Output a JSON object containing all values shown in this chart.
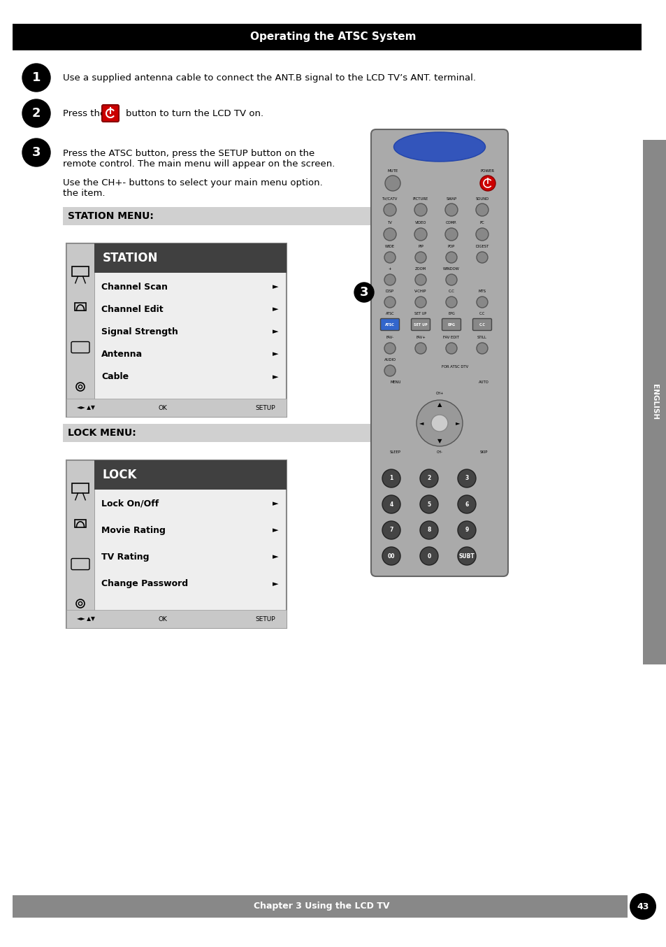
{
  "title": "Operating the ATSC System",
  "footer_text": "Chapter 3 Using the LCD TV",
  "page_num": "43",
  "step1_text": "Use a supplied antenna cable to connect the ANT.B signal to the LCD TV’s ANT. terminal.",
  "step2_text1": "Press the",
  "step2_text2": "button to turn the LCD TV on.",
  "step3_text1": "Press the ATSC button, press the SETUP button on the\nremote control. The main menu will appear on the screen.",
  "step3_text2": "Use the CH+- buttons to select your main menu option.\nthe item.",
  "station_menu_label": "STATION MENU:",
  "lock_menu_label": "LOCK MENU:",
  "station_title": "STATION",
  "station_items": [
    "Channel Scan",
    "Channel Edit",
    "Signal Strength",
    "Antenna",
    "Cable"
  ],
  "lock_title": "LOCK",
  "lock_items": [
    "Lock On/Off",
    "Movie Rating",
    "TV Rating",
    "Change Password"
  ],
  "bg_color": "#ffffff",
  "header_bg": "#000000",
  "header_text_color": "#ffffff",
  "footer_bg": "#888888",
  "footer_text_color": "#ffffff",
  "menu_header_bg": "#404040",
  "menu_header_text": "#ffffff",
  "menu_bg": "#eeeeee",
  "menu_border": "#888888",
  "sidebar_icon_bg": "#c8c8c8",
  "english_tab_bg": "#888888",
  "english_tab_text": "#ffffff"
}
